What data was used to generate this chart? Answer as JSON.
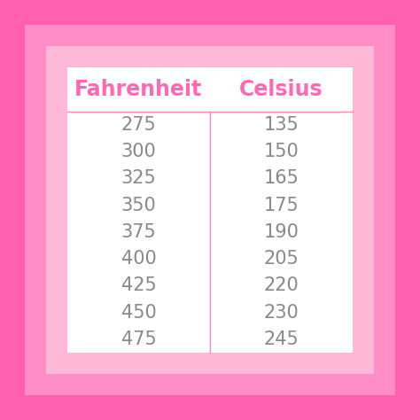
{
  "fahrenheit": [
    275,
    300,
    325,
    350,
    375,
    400,
    425,
    450,
    475
  ],
  "celsius": [
    135,
    150,
    165,
    175,
    190,
    205,
    220,
    230,
    245
  ],
  "col_headers": [
    "Fahrenheit",
    "Celsius"
  ],
  "header_color": "#FF69B4",
  "data_color": "#888888",
  "bg_outer": "#FF5FAE",
  "bg_mid": "#FF8EC7",
  "bg_inner": "#FFB8D8",
  "table_bg": "#FFFFFF",
  "divider_color": "#FF88BB",
  "header_fontsize": 17,
  "data_fontsize": 15,
  "figsize": [
    4.74,
    4.74
  ],
  "dpi": 100
}
